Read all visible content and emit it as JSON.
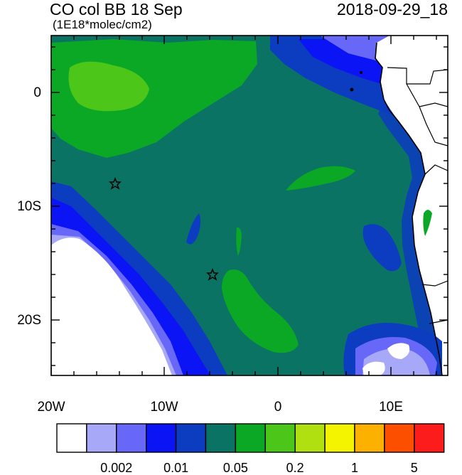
{
  "title": "CO col BB 18 Sep",
  "datetime": "2018-09-29_18",
  "units": "(1E18*molec/cm2)",
  "map": {
    "lon_range": [
      -20,
      15
    ],
    "lat_range": [
      -25,
      5
    ],
    "lon_ticks": [
      {
        "lon": -20,
        "label": "20W"
      },
      {
        "lon": -10,
        "label": "10W"
      },
      {
        "lon": 0,
        "label": "0"
      },
      {
        "lon": 10,
        "label": "10E"
      }
    ],
    "lat_ticks": [
      {
        "lat": 0,
        "label": "0"
      },
      {
        "lat": -10,
        "label": "10S"
      },
      {
        "lat": -20,
        "label": "20S"
      }
    ],
    "markers": [
      {
        "type": "star",
        "lon": -14.3,
        "lat": -8.0
      },
      {
        "type": "star",
        "lon": -5.8,
        "lat": -16.0
      }
    ]
  },
  "colorbar": {
    "colors": [
      "#ffffff",
      "#a8a8f8",
      "#6868f8",
      "#0a14f4",
      "#0c3cc0",
      "#0b7364",
      "#0ba826",
      "#4cc618",
      "#b0e010",
      "#f4f400",
      "#fcb000",
      "#fc5000",
      "#fc1c1c"
    ],
    "labels": [
      {
        "after_box": 2,
        "text": "0.002"
      },
      {
        "after_box": 4,
        "text": "0.01"
      },
      {
        "after_box": 6,
        "text": "0.05"
      },
      {
        "after_box": 8,
        "text": "0.2"
      },
      {
        "after_box": 10,
        "text": "1"
      },
      {
        "after_box": 12,
        "text": "5"
      }
    ]
  }
}
